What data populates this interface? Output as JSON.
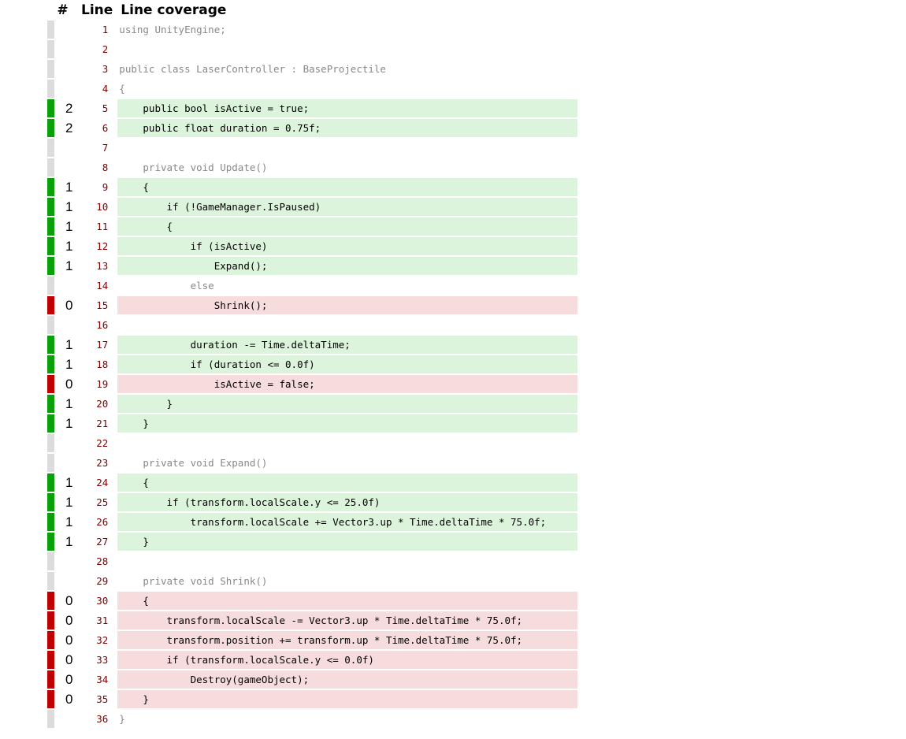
{
  "headers": {
    "hash": "#",
    "line": "Line",
    "coverage": "Line coverage"
  },
  "colors": {
    "covered": "#0aa00a",
    "uncovered": "#c00000",
    "not_coverable": "#dcdcdc",
    "covered_bg": "#dcf4dc",
    "uncovered_bg": "#f6dcdc"
  },
  "lines": [
    {
      "n": "1",
      "hits": "",
      "s": "none",
      "code": "using UnityEngine;"
    },
    {
      "n": "2",
      "hits": "",
      "s": "none",
      "code": ""
    },
    {
      "n": "3",
      "hits": "",
      "s": "none",
      "code": "public class LaserController : BaseProjectile"
    },
    {
      "n": "4",
      "hits": "",
      "s": "none",
      "code": "{"
    },
    {
      "n": "5",
      "hits": "2",
      "s": "covered",
      "code": "    public bool isActive = true;"
    },
    {
      "n": "6",
      "hits": "2",
      "s": "covered",
      "code": "    public float duration = 0.75f;"
    },
    {
      "n": "7",
      "hits": "",
      "s": "none",
      "code": ""
    },
    {
      "n": "8",
      "hits": "",
      "s": "none",
      "code": "    private void Update()"
    },
    {
      "n": "9",
      "hits": "1",
      "s": "covered",
      "code": "    {"
    },
    {
      "n": "10",
      "hits": "1",
      "s": "covered",
      "code": "        if (!GameManager.IsPaused)"
    },
    {
      "n": "11",
      "hits": "1",
      "s": "covered",
      "code": "        {"
    },
    {
      "n": "12",
      "hits": "1",
      "s": "covered",
      "code": "            if (isActive)"
    },
    {
      "n": "13",
      "hits": "1",
      "s": "covered",
      "code": "                Expand();"
    },
    {
      "n": "14",
      "hits": "",
      "s": "none",
      "code": "            else"
    },
    {
      "n": "15",
      "hits": "0",
      "s": "uncovered",
      "code": "                Shrink();"
    },
    {
      "n": "16",
      "hits": "",
      "s": "none",
      "code": ""
    },
    {
      "n": "17",
      "hits": "1",
      "s": "covered",
      "code": "            duration -= Time.deltaTime;"
    },
    {
      "n": "18",
      "hits": "1",
      "s": "covered",
      "code": "            if (duration <= 0.0f)"
    },
    {
      "n": "19",
      "hits": "0",
      "s": "uncovered",
      "code": "                isActive = false;"
    },
    {
      "n": "20",
      "hits": "1",
      "s": "covered",
      "code": "        }"
    },
    {
      "n": "21",
      "hits": "1",
      "s": "covered",
      "code": "    }"
    },
    {
      "n": "22",
      "hits": "",
      "s": "none",
      "code": ""
    },
    {
      "n": "23",
      "hits": "",
      "s": "none",
      "code": "    private void Expand()"
    },
    {
      "n": "24",
      "hits": "1",
      "s": "covered",
      "code": "    {"
    },
    {
      "n": "25",
      "hits": "1",
      "s": "covered",
      "code": "        if (transform.localScale.y <= 25.0f)"
    },
    {
      "n": "26",
      "hits": "1",
      "s": "covered",
      "code": "            transform.localScale += Vector3.up * Time.deltaTime * 75.0f;"
    },
    {
      "n": "27",
      "hits": "1",
      "s": "covered",
      "code": "    }"
    },
    {
      "n": "28",
      "hits": "",
      "s": "none",
      "code": ""
    },
    {
      "n": "29",
      "hits": "",
      "s": "none",
      "code": "    private void Shrink()"
    },
    {
      "n": "30",
      "hits": "0",
      "s": "uncovered",
      "code": "    {"
    },
    {
      "n": "31",
      "hits": "0",
      "s": "uncovered",
      "code": "        transform.localScale -= Vector3.up * Time.deltaTime * 75.0f;"
    },
    {
      "n": "32",
      "hits": "0",
      "s": "uncovered",
      "code": "        transform.position += transform.up * Time.deltaTime * 75.0f;"
    },
    {
      "n": "33",
      "hits": "0",
      "s": "uncovered",
      "code": "        if (transform.localScale.y <= 0.0f)"
    },
    {
      "n": "34",
      "hits": "0",
      "s": "uncovered",
      "code": "            Destroy(gameObject);"
    },
    {
      "n": "35",
      "hits": "0",
      "s": "uncovered",
      "code": "    }"
    },
    {
      "n": "36",
      "hits": "",
      "s": "none",
      "code": "}"
    }
  ]
}
